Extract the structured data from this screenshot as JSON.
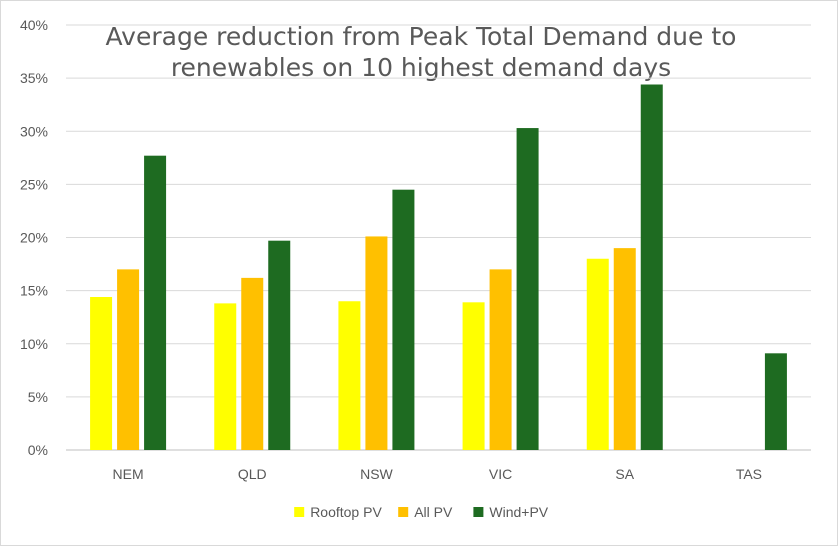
{
  "chart_data": {
    "type": "bar",
    "title": "Average reduction from Peak Total Demand due to renewables on 10 highest demand days",
    "categories": [
      "NEM",
      "QLD",
      "NSW",
      "VIC",
      "SA",
      "TAS"
    ],
    "series": [
      {
        "name": "Rooftop PV",
        "color": "#ffff00",
        "values": [
          14.4,
          13.8,
          14.0,
          13.9,
          18.0,
          null
        ]
      },
      {
        "name": "All PV",
        "color": "#ffc000",
        "values": [
          17.0,
          16.2,
          20.1,
          17.0,
          19.0,
          null
        ]
      },
      {
        "name": "Wind+PV",
        "color": "#1e6b21",
        "values": [
          27.7,
          19.7,
          24.5,
          30.3,
          34.4,
          9.1
        ]
      }
    ],
    "ylim": [
      0,
      40
    ],
    "yticks": [
      "0%",
      "5%",
      "10%",
      "15%",
      "20%",
      "25%",
      "30%",
      "35%",
      "40%"
    ],
    "grid": true,
    "legend_position": "bottom"
  }
}
